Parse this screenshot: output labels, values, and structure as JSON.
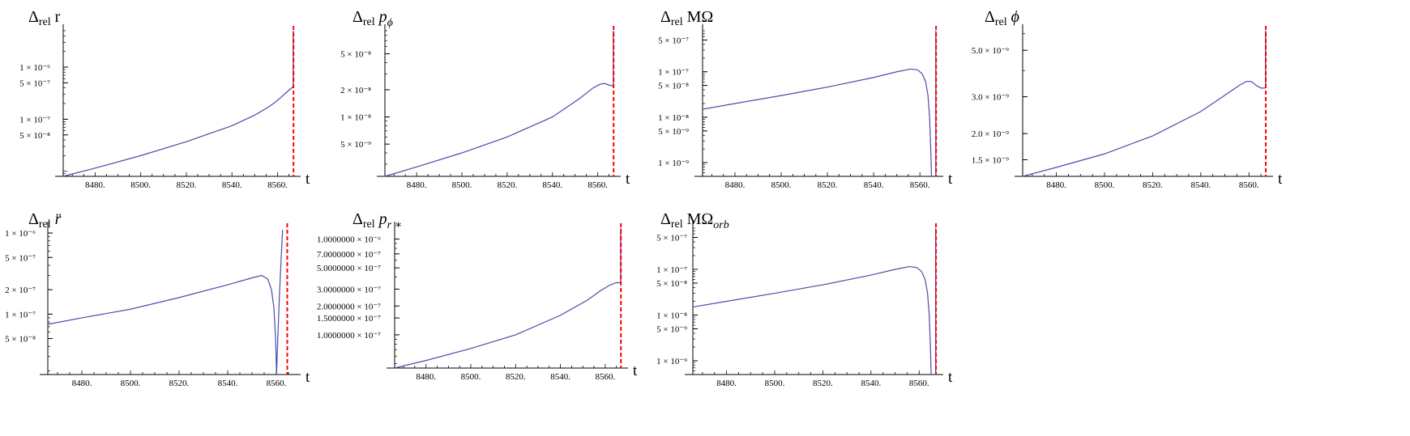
{
  "chart_data": [
    {
      "type": "line",
      "title": "Δ_rel r",
      "title_parts": {
        "main": "Δ",
        "sub": "rel",
        "after": " r"
      },
      "xlabel": "t",
      "x_ticks": [
        "8480.",
        "8500.",
        "8520.",
        "8540.",
        "8560."
      ],
      "xlim": [
        8466,
        8568
      ],
      "y_scale": "log",
      "y_ticks": [
        {
          "value": 1e-06,
          "label": "1 × 10⁻⁶"
        },
        {
          "value": 5e-07,
          "label": "5 × 10⁻⁷"
        },
        {
          "value": 1e-07,
          "label": "1 × 10⁻⁷"
        },
        {
          "value": 5e-08,
          "label": "5 × 10⁻⁸"
        }
      ],
      "ylim": [
        8e-09,
        5e-06
      ],
      "series": [
        {
          "color": "#4b4ba8",
          "points": [
            [
              8466,
              8e-09
            ],
            [
              8480,
              1.15e-08
            ],
            [
              8500,
              2e-08
            ],
            [
              8520,
              3.7e-08
            ],
            [
              8540,
              7.5e-08
            ],
            [
              8550,
              1.2e-07
            ],
            [
              8556,
              1.7e-07
            ],
            [
              8560,
              2.3e-07
            ],
            [
              8564,
              3.3e-07
            ],
            [
              8566.8,
              4.2e-07
            ]
          ]
        }
      ],
      "marker_line": {
        "x": 8567,
        "color": "#ff0000",
        "style": "dashed"
      },
      "spike": {
        "x": 8566.9,
        "from": 4.2e-07,
        "to": 5e-06
      }
    },
    {
      "type": "line",
      "title": "Δ_rel p_ϕ",
      "title_parts": {
        "main": "Δ",
        "sub": "rel",
        "after": " p",
        "after_sub": "ϕ"
      },
      "xlabel": "t",
      "x_ticks": [
        "8480.",
        "8500.",
        "8520.",
        "8540.",
        "8560."
      ],
      "xlim": [
        8466,
        8568
      ],
      "y_scale": "log",
      "y_ticks": [
        {
          "value": 5e-08,
          "label": "5 × 10⁻⁸"
        },
        {
          "value": 2e-08,
          "label": "2 × 10⁻⁸"
        },
        {
          "value": 1e-08,
          "label": "1 × 10⁻⁸"
        },
        {
          "value": 5e-09,
          "label": "5 × 10⁻⁹"
        }
      ],
      "ylim": [
        2.2e-09,
        9e-08
      ],
      "series": [
        {
          "color": "#4b4ba8",
          "points": [
            [
              8466,
              2.2e-09
            ],
            [
              8480,
              2.8e-09
            ],
            [
              8500,
              4e-09
            ],
            [
              8520,
              6e-09
            ],
            [
              8540,
              1e-08
            ],
            [
              8552,
              1.6e-08
            ],
            [
              8558,
              2.1e-08
            ],
            [
              8561,
              2.3e-08
            ],
            [
              8563,
              2.35e-08
            ],
            [
              8565,
              2.25e-08
            ],
            [
              8566.8,
              2.2e-08
            ]
          ]
        }
      ],
      "marker_line": {
        "x": 8567,
        "color": "#ff0000",
        "style": "dashed"
      },
      "spike": {
        "x": 8566.9,
        "from": 2.2e-08,
        "to": 9e-08
      }
    },
    {
      "type": "line",
      "title": "Δ_rel MΩ",
      "title_parts": {
        "main": "Δ",
        "sub": "rel",
        "after": " MΩ"
      },
      "xlabel": "t",
      "x_ticks": [
        "8480.",
        "8500.",
        "8520.",
        "8540.",
        "8560."
      ],
      "xlim": [
        8466,
        8568
      ],
      "y_scale": "log",
      "y_ticks": [
        {
          "value": 5e-07,
          "label": "5 × 10⁻⁷"
        },
        {
          "value": 1e-07,
          "label": "1 × 10⁻⁷"
        },
        {
          "value": 5e-08,
          "label": "5 × 10⁻⁸"
        },
        {
          "value": 1e-08,
          "label": "1 × 10⁻⁸"
        },
        {
          "value": 5e-09,
          "label": "5 × 10⁻⁹"
        },
        {
          "value": 1e-09,
          "label": "1 × 10⁻⁹"
        }
      ],
      "ylim": [
        5e-10,
        8e-07
      ],
      "series": [
        {
          "color": "#4b4ba8",
          "points": [
            [
              8466,
              1.5e-08
            ],
            [
              8480,
              2e-08
            ],
            [
              8500,
              3e-08
            ],
            [
              8520,
              4.6e-08
            ],
            [
              8540,
              7.5e-08
            ],
            [
              8550,
              1e-07
            ],
            [
              8556,
              1.15e-07
            ],
            [
              8559,
              1.1e-07
            ],
            [
              8561,
              9e-08
            ],
            [
              8562.5,
              6e-08
            ],
            [
              8563.5,
              3e-08
            ],
            [
              8564.2,
              1e-08
            ],
            [
              8564.7,
              2e-09
            ],
            [
              8565,
              5e-10
            ]
          ]
        }
      ],
      "marker_line": {
        "x": 8567,
        "color": "#ff0000",
        "style": "dashed"
      },
      "spike": {
        "x": 8566.9,
        "from": 5e-10,
        "to": 8e-07
      }
    },
    {
      "type": "line",
      "title": "Δ_rel ϕ",
      "title_parts": {
        "main": "Δ",
        "sub": "rel",
        "after": " ϕ"
      },
      "xlabel": "t",
      "x_ticks": [
        "8480.",
        "8500.",
        "8520.",
        "8540.",
        "8560."
      ],
      "xlim": [
        8466,
        8568
      ],
      "y_scale": "log",
      "y_ticks": [
        {
          "value": 5e-09,
          "label": "5.0 × 10⁻⁹"
        },
        {
          "value": 3e-09,
          "label": "3.0 × 10⁻⁹"
        },
        {
          "value": 2e-09,
          "label": "2.0 × 10⁻⁹"
        },
        {
          "value": 1.5e-09,
          "label": "1.5 × 10⁻⁹"
        }
      ],
      "ylim": [
        1.25e-09,
        6.2e-09
      ],
      "series": [
        {
          "color": "#4b4ba8",
          "points": [
            [
              8466,
              1.25e-09
            ],
            [
              8480,
              1.38e-09
            ],
            [
              8500,
              1.6e-09
            ],
            [
              8520,
              1.95e-09
            ],
            [
              8540,
              2.55e-09
            ],
            [
              8550,
              3.05e-09
            ],
            [
              8556,
              3.4e-09
            ],
            [
              8559,
              3.55e-09
            ],
            [
              8561,
              3.55e-09
            ],
            [
              8563,
              3.4e-09
            ],
            [
              8565,
              3.3e-09
            ],
            [
              8566.8,
              3.3e-09
            ]
          ]
        }
      ],
      "marker_line": {
        "x": 8567,
        "color": "#ff0000",
        "style": "dashed"
      },
      "spike": {
        "x": 8566.9,
        "from": 3.3e-09,
        "to": 6.2e-09
      }
    },
    {
      "type": "line",
      "title": "Δ_rel r̈",
      "title_parts": {
        "main": "Δ",
        "sub": "rel",
        "after": " r̈"
      },
      "xlabel": "t",
      "x_ticks": [
        "8480.",
        "8500.",
        "8520.",
        "8540.",
        "8560."
      ],
      "xlim": [
        8466,
        8568
      ],
      "y_scale": "log",
      "y_ticks": [
        {
          "value": 1e-06,
          "label": "1 × 10⁻⁶"
        },
        {
          "value": 5e-07,
          "label": "5 × 10⁻⁷"
        },
        {
          "value": 2e-07,
          "label": "2 × 10⁻⁷"
        },
        {
          "value": 1e-07,
          "label": "1 × 10⁻⁷"
        },
        {
          "value": 5e-08,
          "label": "5 × 10⁻⁸"
        }
      ],
      "ylim": [
        1.8e-08,
        1.15e-06
      ],
      "series": [
        {
          "color": "#4b4ba8",
          "points": [
            [
              8466,
              7.5e-08
            ],
            [
              8480,
              9e-08
            ],
            [
              8500,
              1.15e-07
            ],
            [
              8520,
              1.6e-07
            ],
            [
              8540,
              2.3e-07
            ],
            [
              8550,
              2.8e-07
            ],
            [
              8554,
              3e-07
            ],
            [
              8556.5,
              2.7e-07
            ],
            [
              8558,
              2e-07
            ],
            [
              8559,
              1.2e-07
            ],
            [
              8559.7,
              5e-08
            ],
            [
              8560.1,
              1.8e-08
            ],
            [
              8560.6,
              5e-08
            ],
            [
              8561.2,
              1.5e-07
            ],
            [
              8562,
              5e-07
            ],
            [
              8562.6,
              1.1e-06
            ]
          ]
        }
      ],
      "marker_line": {
        "x": 8564.5,
        "color": "#ff0000",
        "style": "dashed"
      }
    },
    {
      "type": "line",
      "title": "Δ_rel p_r*",
      "title_parts": {
        "main": "Δ",
        "sub": "rel",
        "after": " p",
        "after_sub": "r ∗"
      },
      "xlabel": "t",
      "x_ticks": [
        "8480.",
        "8500.",
        "8520.",
        "8540.",
        "8560."
      ],
      "xlim": [
        8466,
        8568
      ],
      "y_scale": "log",
      "y_ticks": [
        {
          "value": 1e-06,
          "label": "1.0000000 × 10⁻⁶"
        },
        {
          "value": 7e-07,
          "label": "7.0000000 × 10⁻⁷"
        },
        {
          "value": 5e-07,
          "label": "5.0000000 × 10⁻⁷"
        },
        {
          "value": 3e-07,
          "label": "3.0000000 × 10⁻⁷"
        },
        {
          "value": 2e-07,
          "label": "2.0000000 × 10⁻⁷"
        },
        {
          "value": 1.5e-07,
          "label": "1.5000000 × 10⁻⁷"
        },
        {
          "value": 1e-07,
          "label": "1.0000000 × 10⁻⁷"
        }
      ],
      "ylim": [
        4.5e-08,
        1.3e-06
      ],
      "series": [
        {
          "color": "#4b4ba8",
          "points": [
            [
              8466,
              4.5e-08
            ],
            [
              8480,
              5.4e-08
            ],
            [
              8500,
              7.2e-08
            ],
            [
              8520,
              1e-07
            ],
            [
              8540,
              1.6e-07
            ],
            [
              8552,
              2.3e-07
            ],
            [
              8558,
              2.9e-07
            ],
            [
              8562,
              3.3e-07
            ],
            [
              8565,
              3.5e-07
            ],
            [
              8566.8,
              3.5e-07
            ]
          ]
        }
      ],
      "marker_line": {
        "x": 8567,
        "color": "#ff0000",
        "style": "dashed"
      },
      "spike": {
        "x": 8566.9,
        "from": 3.5e-07,
        "to": 1.3e-06
      }
    },
    {
      "type": "line",
      "title": "Δ_rel MΩ_orb",
      "title_parts": {
        "main": "Δ",
        "sub": "rel",
        "after": " MΩ",
        "after_sub": "orb"
      },
      "xlabel": "t",
      "x_ticks": [
        "8480.",
        "8500.",
        "8520.",
        "8540.",
        "8560."
      ],
      "xlim": [
        8466,
        8568
      ],
      "y_scale": "log",
      "y_ticks": [
        {
          "value": 5e-07,
          "label": "5 × 10⁻⁷"
        },
        {
          "value": 1e-07,
          "label": "1 × 10⁻⁷"
        },
        {
          "value": 5e-08,
          "label": "5 × 10⁻⁸"
        },
        {
          "value": 1e-08,
          "label": "1 × 10⁻⁸"
        },
        {
          "value": 5e-09,
          "label": "5 × 10⁻⁹"
        },
        {
          "value": 1e-09,
          "label": "1 × 10⁻⁹"
        }
      ],
      "ylim": [
        5e-10,
        8e-07
      ],
      "series": [
        {
          "color": "#4b4ba8",
          "points": [
            [
              8466,
              1.5e-08
            ],
            [
              8480,
              2e-08
            ],
            [
              8500,
              3e-08
            ],
            [
              8520,
              4.6e-08
            ],
            [
              8540,
              7.5e-08
            ],
            [
              8550,
              1e-07
            ],
            [
              8556,
              1.15e-07
            ],
            [
              8559,
              1.1e-07
            ],
            [
              8561,
              9e-08
            ],
            [
              8562.5,
              6e-08
            ],
            [
              8563.5,
              3e-08
            ],
            [
              8564.2,
              1e-08
            ],
            [
              8564.7,
              2e-09
            ],
            [
              8565,
              5e-10
            ]
          ]
        }
      ],
      "marker_line": {
        "x": 8567,
        "color": "#ff0000",
        "style": "dashed"
      },
      "spike": {
        "x": 8566.9,
        "from": 5e-10,
        "to": 8e-07
      }
    }
  ]
}
